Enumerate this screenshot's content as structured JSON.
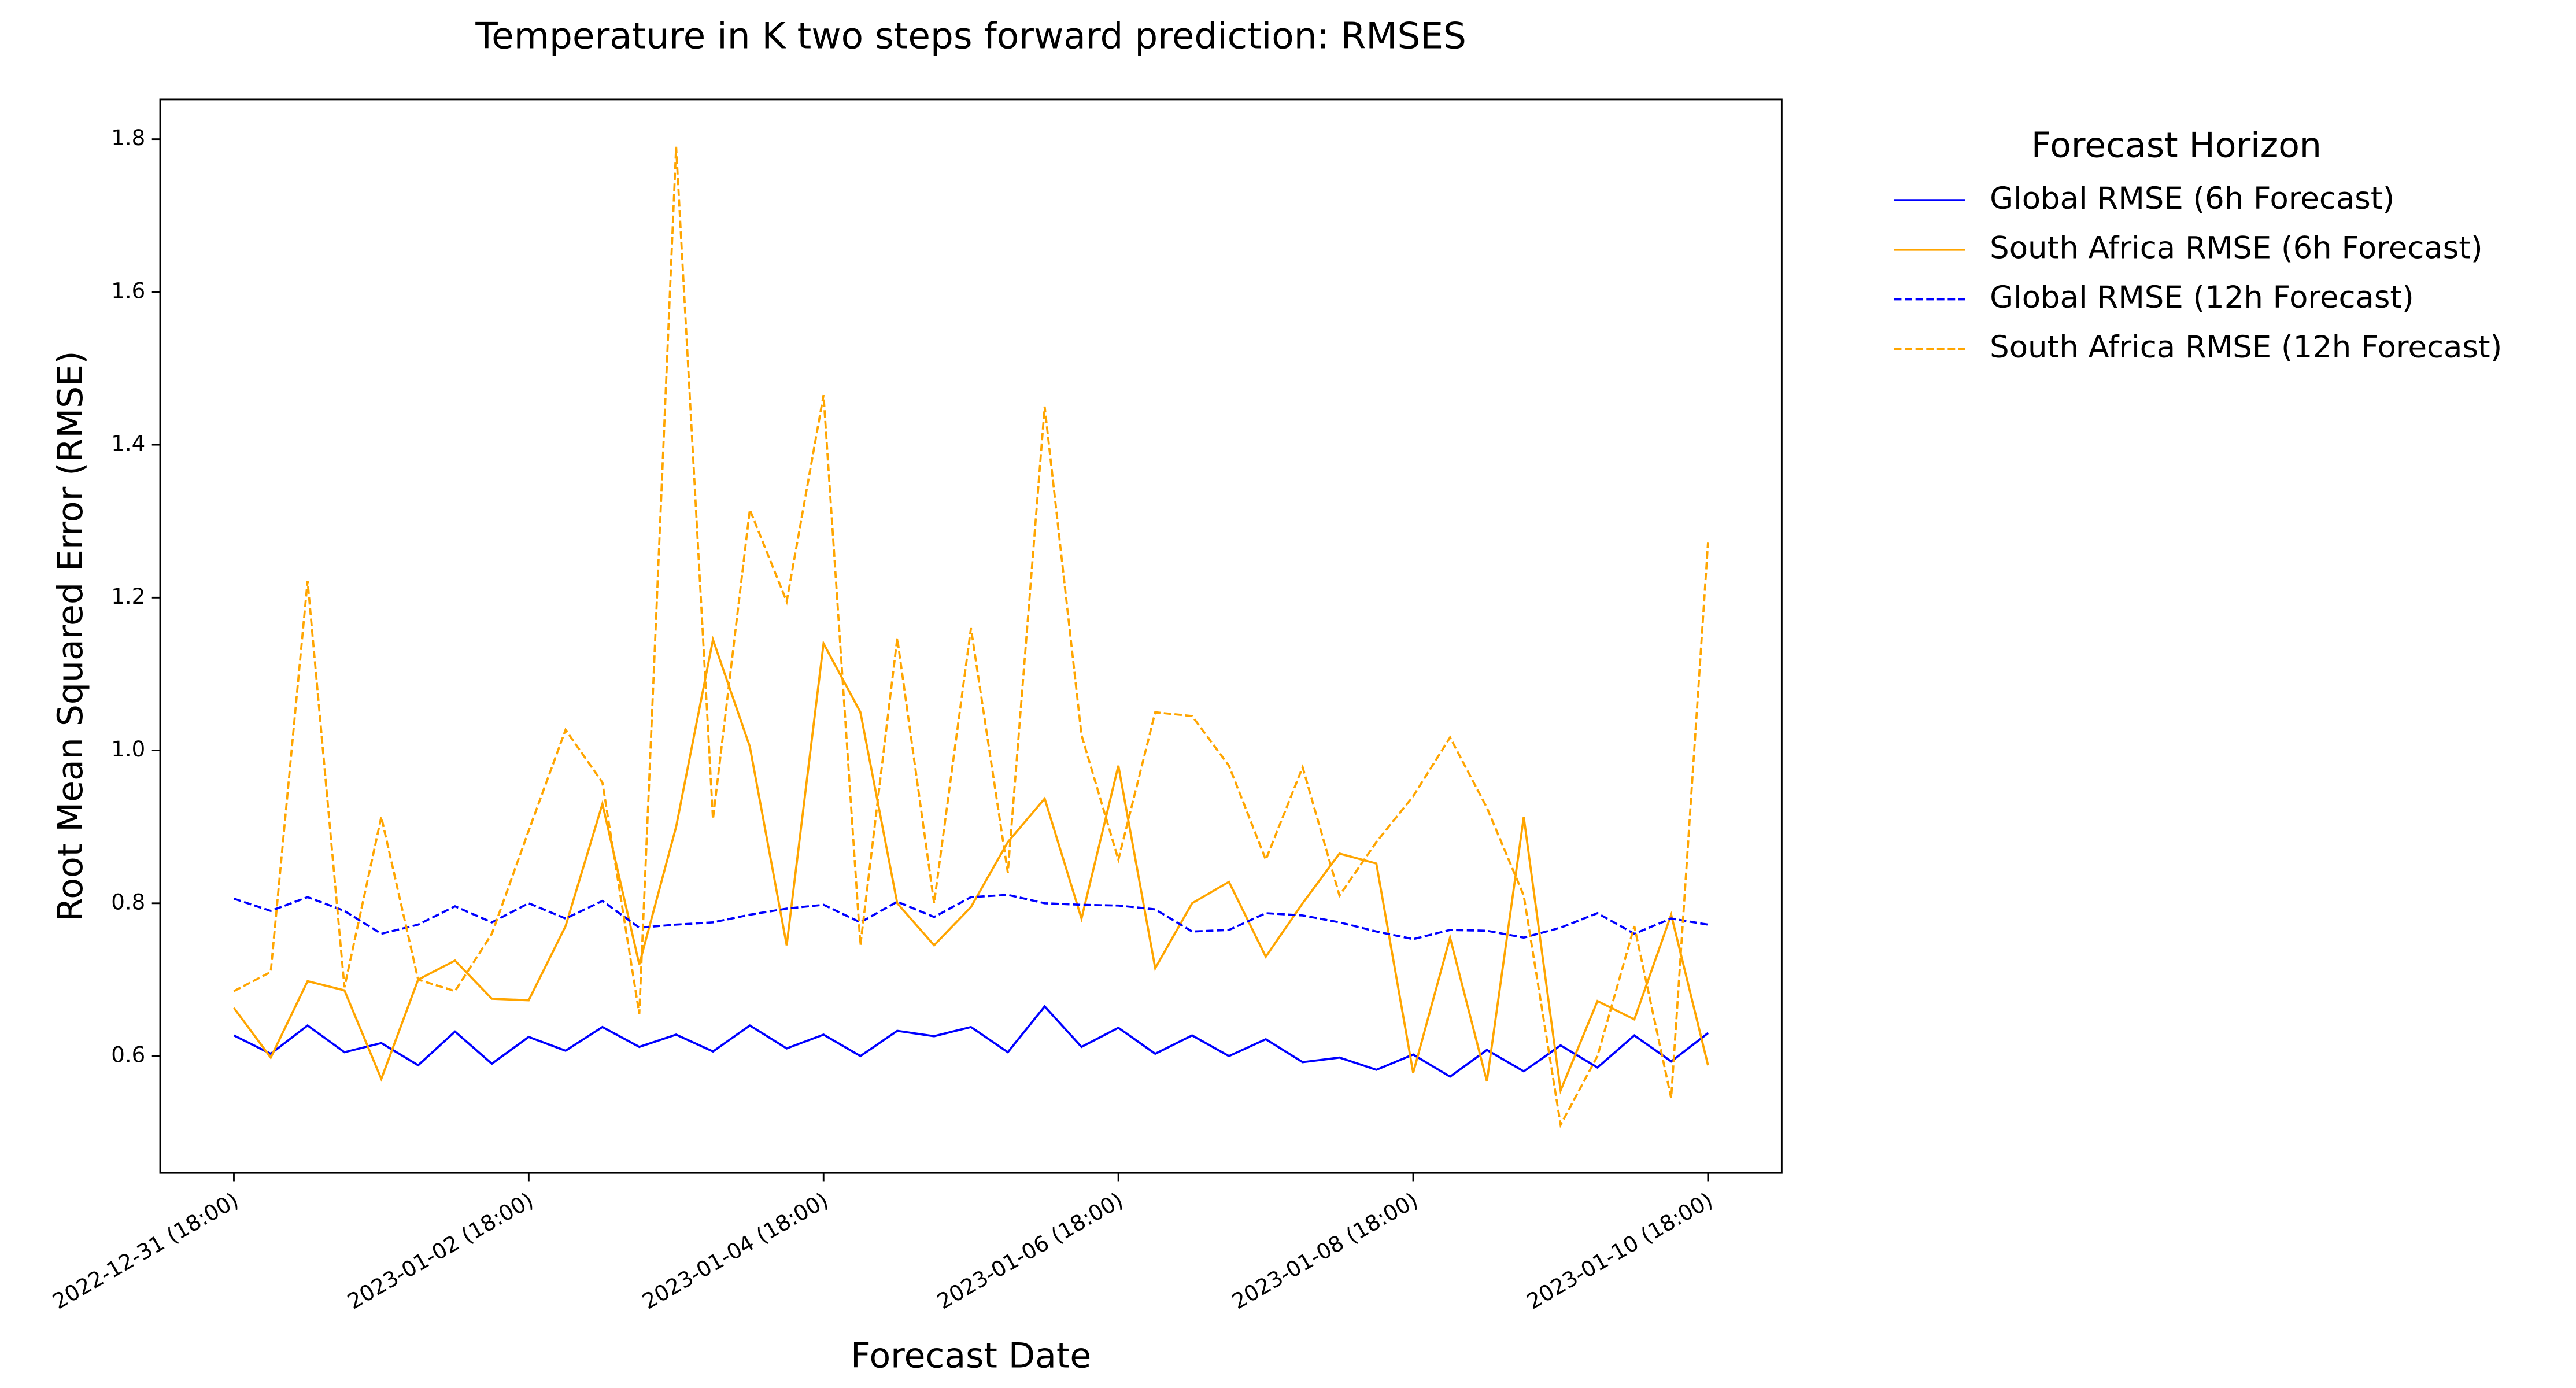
{
  "chart_data": {
    "type": "line",
    "title": "Temperature in K  two steps forward prediction: RMSES",
    "x_label": "Forecast Date",
    "y_label": "Root Mean Squared Error (RMSE)",
    "legend_title": "Forecast Horizon",
    "legend": "outside upper right",
    "x": [
      "2022-12-31 18:00",
      "2023-01-01 00:00",
      "2023-01-01 06:00",
      "2023-01-01 12:00",
      "2023-01-01 18:00",
      "2023-01-02 00:00",
      "2023-01-02 06:00",
      "2023-01-02 12:00",
      "2023-01-02 18:00",
      "2023-01-03 00:00",
      "2023-01-03 06:00",
      "2023-01-03 12:00",
      "2023-01-03 18:00",
      "2023-01-04 00:00",
      "2023-01-04 06:00",
      "2023-01-04 12:00",
      "2023-01-04 18:00",
      "2023-01-05 00:00",
      "2023-01-05 06:00",
      "2023-01-05 12:00",
      "2023-01-05 18:00",
      "2023-01-06 00:00",
      "2023-01-06 06:00",
      "2023-01-06 12:00",
      "2023-01-06 18:00",
      "2023-01-07 00:00",
      "2023-01-07 06:00",
      "2023-01-07 12:00",
      "2023-01-07 18:00",
      "2023-01-08 00:00",
      "2023-01-08 06:00",
      "2023-01-08 12:00",
      "2023-01-08 18:00",
      "2023-01-09 00:00",
      "2023-01-09 06:00",
      "2023-01-09 12:00",
      "2023-01-09 18:00",
      "2023-01-10 00:00",
      "2023-01-10 06:00",
      "2023-01-10 12:00",
      "2023-01-10 18:00"
    ],
    "xlim": [
      "2022-12-31 06:00",
      "2023-01-11 06:00"
    ],
    "xticks": [
      {
        "value": "2022-12-31 18:00",
        "label": "2022-12-31 (18:00)"
      },
      {
        "value": "2023-01-02 18:00",
        "label": "2023-01-02 (18:00)"
      },
      {
        "value": "2023-01-04 18:00",
        "label": "2023-01-04 (18:00)"
      },
      {
        "value": "2023-01-06 18:00",
        "label": "2023-01-06 (18:00)"
      },
      {
        "value": "2023-01-08 18:00",
        "label": "2023-01-08 (18:00)"
      },
      {
        "value": "2023-01-10 18:00",
        "label": "2023-01-10 (18:00)"
      }
    ],
    "ylim": [
      0.447,
      1.852
    ],
    "yticks": [
      {
        "value": 0.6,
        "label": "0.6"
      },
      {
        "value": 0.8,
        "label": "0.8"
      },
      {
        "value": 1.0,
        "label": "1.0"
      },
      {
        "value": 1.2,
        "label": "1.2"
      },
      {
        "value": 1.4,
        "label": "1.4"
      },
      {
        "value": 1.6,
        "label": "1.6"
      },
      {
        "value": 1.8,
        "label": "1.8"
      }
    ],
    "grid": false,
    "series": [
      {
        "name": "Global RMSE (6h Forecast)",
        "color": "#0000ff",
        "linestyle": "solid",
        "values": [
          0.627,
          0.603,
          0.64,
          0.605,
          0.617,
          0.588,
          0.632,
          0.59,
          0.625,
          0.607,
          0.638,
          0.612,
          0.628,
          0.606,
          0.64,
          0.61,
          0.628,
          0.6,
          0.633,
          0.626,
          0.638,
          0.605,
          0.665,
          0.612,
          0.637,
          0.603,
          0.627,
          0.6,
          0.622,
          0.592,
          0.598,
          0.582,
          0.602,
          0.573,
          0.608,
          0.58,
          0.614,
          0.585,
          0.627,
          0.593,
          0.63
        ]
      },
      {
        "name": "South Africa RMSE (6h Forecast)",
        "color": "#ffa500",
        "linestyle": "solid",
        "values": [
          0.663,
          0.598,
          0.698,
          0.686,
          0.57,
          0.7,
          0.725,
          0.675,
          0.673,
          0.77,
          0.93,
          0.72,
          0.9,
          1.145,
          1.005,
          0.745,
          1.14,
          1.05,
          0.8,
          0.745,
          0.795,
          0.88,
          0.937,
          0.78,
          0.98,
          0.715,
          0.8,
          0.828,
          0.73,
          0.8,
          0.865,
          0.852,
          0.578,
          0.755,
          0.567,
          0.913,
          0.555,
          0.672,
          0.648,
          0.785,
          0.588
        ]
      },
      {
        "name": "Global RMSE (12h Forecast)",
        "color": "#0000ff",
        "linestyle": "dashed",
        "values": [
          0.806,
          0.79,
          0.808,
          0.79,
          0.76,
          0.772,
          0.796,
          0.775,
          0.8,
          0.78,
          0.803,
          0.768,
          0.772,
          0.775,
          0.785,
          0.793,
          0.798,
          0.775,
          0.802,
          0.782,
          0.808,
          0.811,
          0.8,
          0.798,
          0.797,
          0.792,
          0.763,
          0.765,
          0.787,
          0.784,
          0.775,
          0.763,
          0.753,
          0.765,
          0.764,
          0.755,
          0.768,
          0.787,
          0.76,
          0.78,
          0.772
        ]
      },
      {
        "name": "South Africa RMSE (12h Forecast)",
        "color": "#ffa500",
        "linestyle": "dashed",
        "values": [
          0.685,
          0.71,
          1.222,
          0.69,
          0.913,
          0.7,
          0.685,
          0.76,
          0.895,
          1.027,
          0.958,
          0.655,
          1.79,
          0.91,
          1.315,
          1.195,
          1.465,
          0.745,
          1.147,
          0.8,
          1.16,
          0.84,
          1.45,
          1.02,
          0.857,
          1.05,
          1.045,
          0.98,
          0.857,
          0.978,
          0.81,
          0.88,
          0.94,
          1.017,
          0.925,
          0.81,
          0.51,
          0.6,
          0.77,
          0.545,
          1.272
        ]
      }
    ]
  }
}
